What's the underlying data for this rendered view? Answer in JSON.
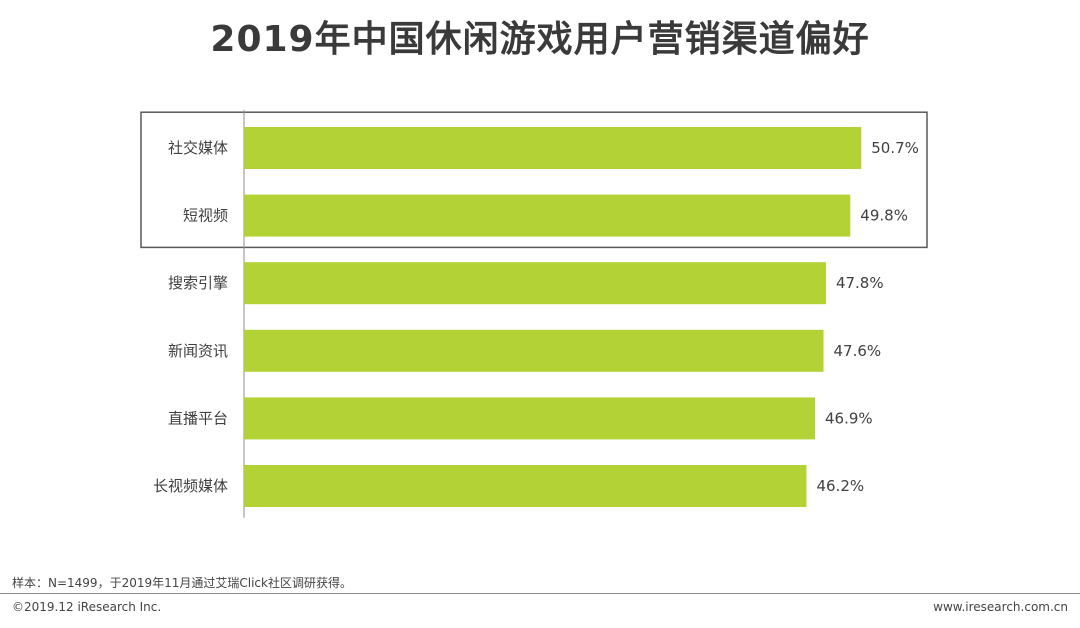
{
  "title": "2019年中国休闲游戏用户营销渠道偏好",
  "chart_data": {
    "type": "bar",
    "orientation": "horizontal",
    "categories": [
      "社交媒体",
      "短视频",
      "搜索引擎",
      "新闻资讯",
      "直播平台",
      "长视频媒体"
    ],
    "values": [
      50.7,
      49.8,
      47.8,
      47.6,
      46.9,
      46.2
    ],
    "value_labels": [
      "50.7%",
      "49.8%",
      "47.8%",
      "47.6%",
      "46.9%",
      "46.2%"
    ],
    "unit": "%",
    "xlim": [
      0,
      51.5
    ],
    "bar_color": "#b2d235",
    "highlight": {
      "categories": [
        "社交媒体",
        "短视频"
      ],
      "style": "boxed"
    },
    "grid": false,
    "legend": "none"
  },
  "footer": {
    "note": "样本：N=1499，于2019年11月通过艾瑞Click社区调研获得。",
    "copyright": "©2019.12 iResearch Inc.",
    "website": "www.iresearch.com.cn"
  }
}
